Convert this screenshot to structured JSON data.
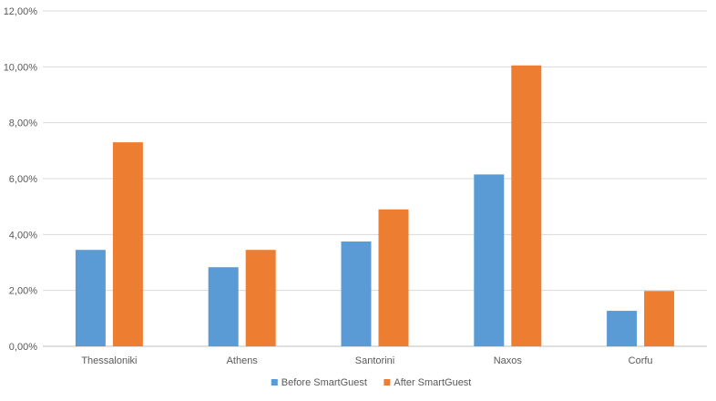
{
  "chart_data": {
    "type": "bar",
    "categories": [
      "Thessaloniki",
      "Athens",
      "Santorini",
      "Naxos",
      "Corfu"
    ],
    "series": [
      {
        "name": "Before SmartGuest",
        "color": "#5B9BD5",
        "values": [
          3.45,
          2.83,
          3.75,
          6.15,
          1.27
        ]
      },
      {
        "name": "After SmartGuest",
        "color": "#ED7D31",
        "values": [
          7.3,
          3.45,
          4.9,
          10.05,
          1.98
        ]
      }
    ],
    "yticks": [
      "0,00%",
      "2,00%",
      "4,00%",
      "6,00%",
      "8,00%",
      "10,00%",
      "12,00%"
    ],
    "ylim": [
      0,
      12
    ],
    "ylabel": "",
    "xlabel": "",
    "grid": true,
    "legend": "bottom-center"
  }
}
